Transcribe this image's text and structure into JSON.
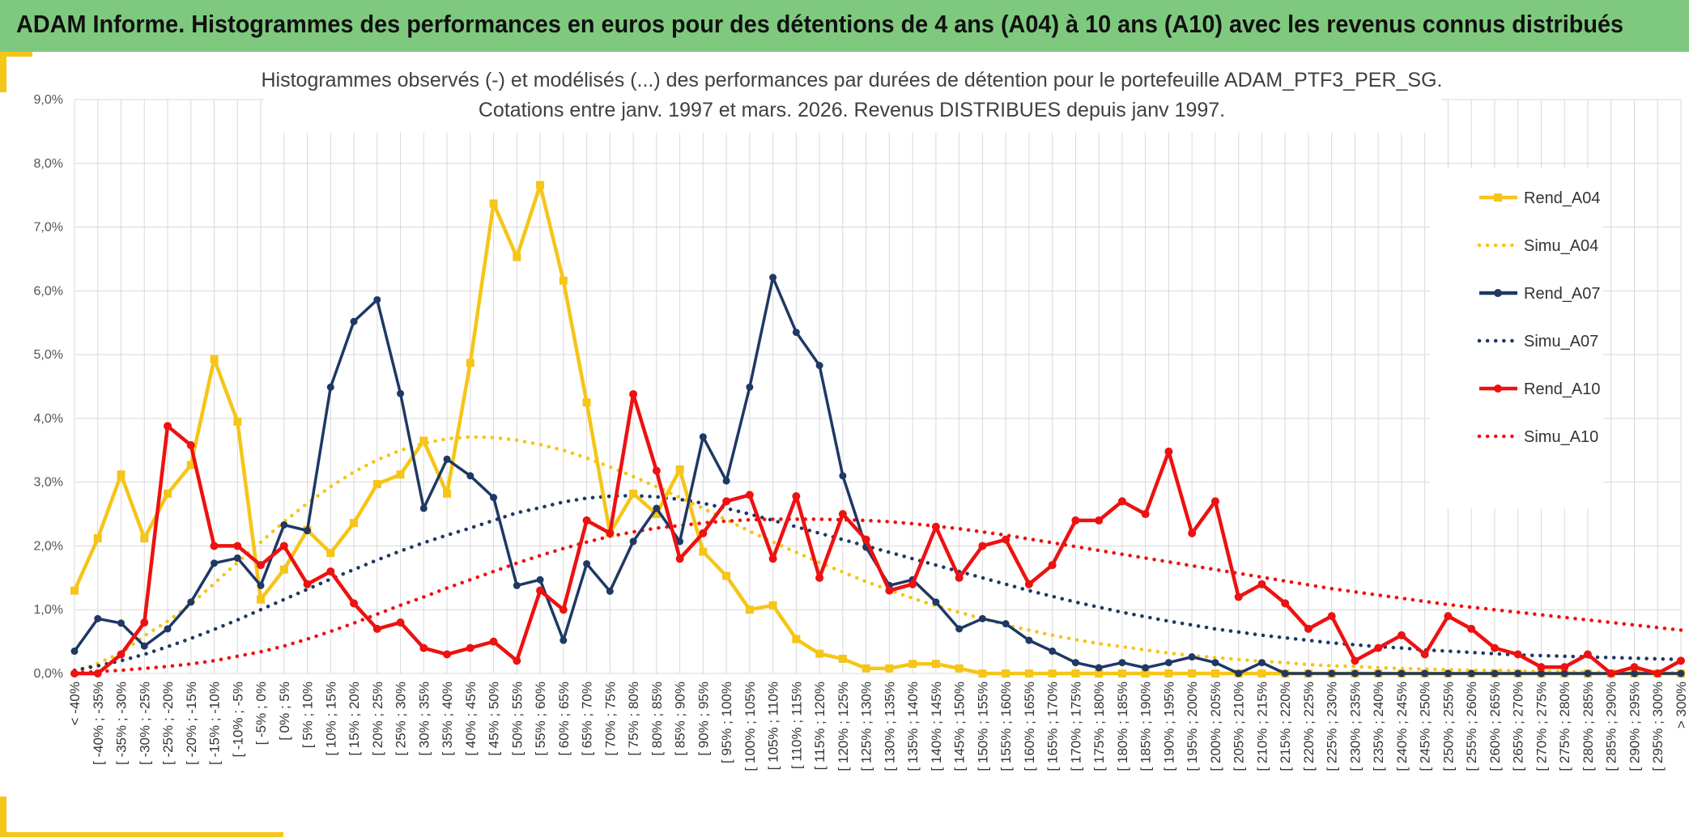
{
  "header": {
    "title": "ADAM Informe. Histogrammes des performances en euros pour des détentions de 4 ans (A04) à 10 ans (A10) avec les revenus connus distribués"
  },
  "colors": {
    "header_bg": "#7fc97f",
    "accent": "#f5c518",
    "a04": "#f5c518",
    "a07": "#1f3864",
    "a10": "#ee1111"
  },
  "chart_data": {
    "type": "line",
    "title": [
      "Histogrammes observés (-) et modélisés (...) des performances par durées de détention pour le portefeuille ADAM_PTF3_PER_SG.",
      "Cotations entre janv. 1997 et mars. 2026. Revenus DISTRIBUES depuis janv 1997."
    ],
    "xlabel": "",
    "ylabel": "",
    "ylim": [
      0,
      9
    ],
    "yticks": [
      "0,0%",
      "1,0%",
      "2,0%",
      "3,0%",
      "4,0%",
      "5,0%",
      "6,0%",
      "7,0%",
      "8,0%",
      "9,0%"
    ],
    "legend_position": "right",
    "categories": [
      "< -40%",
      "[ -40% ; -35%",
      "[ -35% ; -30%",
      "[ -30% ; -25%",
      "[ -25% ; -20%",
      "[ -20% ; -15%",
      "[ -15% ; -10%",
      "[ -10% ; -5%",
      "[ -5% ; 0%",
      "[ 0% ; 5%",
      "[ 5% ; 10%",
      "[ 10% ; 15%",
      "[ 15% ; 20%",
      "[ 20% ; 25%",
      "[ 25% ; 30%",
      "[ 30% ; 35%",
      "[ 35% ; 40%",
      "[ 40% ; 45%",
      "[ 45% ; 50%",
      "[ 50% ; 55%",
      "[ 55% ; 60%",
      "[ 60% ; 65%",
      "[ 65% ; 70%",
      "[ 70% ; 75%",
      "[ 75% ; 80%",
      "[ 80% ; 85%",
      "[ 85% ; 90%",
      "[ 90% ; 95%",
      "[ 95% ; 100%",
      "[ 100% ; 105%",
      "[ 105% ; 110%",
      "[ 110% ; 115%",
      "[ 115% ; 120%",
      "[ 120% ; 125%",
      "[ 125% ; 130%",
      "[ 130% ; 135%",
      "[ 135% ; 140%",
      "[ 140% ; 145%",
      "[ 145% ; 150%",
      "[ 150% ; 155%",
      "[ 155% ; 160%",
      "[ 160% ; 165%",
      "[ 165% ; 170%",
      "[ 170% ; 175%",
      "[ 175% ; 180%",
      "[ 180% ; 185%",
      "[ 185% ; 190%",
      "[ 190% ; 195%",
      "[ 195% ; 200%",
      "[ 200% ; 205%",
      "[ 205% ; 210%",
      "[ 210% ; 215%",
      "[ 215% ; 220%",
      "[ 220% ; 225%",
      "[ 225% ; 230%",
      "[ 230% ; 235%",
      "[ 235% ; 240%",
      "[ 240% ; 245%",
      "[ 245% ; 250%",
      "[ 250% ; 255%",
      "[ 255% ; 260%",
      "[ 260% ; 265%",
      "[ 265% ; 270%",
      "[ 270% ; 275%",
      "[ 275% ; 280%",
      "[ 280% ; 285%",
      "[ 285% ; 290%",
      "[ 290% ; 295%",
      "[ 295% ; 300%",
      "> 300%"
    ],
    "series": [
      {
        "name": "Rend_A04",
        "style": "solid-square",
        "color": "#f5c518",
        "values": [
          1.3,
          2.12,
          3.12,
          2.12,
          2.82,
          3.27,
          4.93,
          3.95,
          1.16,
          1.63,
          2.25,
          1.89,
          2.36,
          2.97,
          3.12,
          3.65,
          2.82,
          4.87,
          7.37,
          6.53,
          7.66,
          6.16,
          4.25,
          2.2,
          2.82,
          2.5,
          3.2,
          1.91,
          1.53,
          1.0,
          1.07,
          0.54,
          0.31,
          0.23,
          0.08,
          0.08,
          0.15,
          0.15,
          0.08,
          0,
          0,
          0,
          0,
          0,
          0,
          0,
          0,
          0,
          0,
          0,
          0,
          0,
          0,
          0,
          0,
          0,
          0,
          0,
          0,
          0,
          0,
          0,
          0,
          0,
          0,
          0,
          0,
          0,
          0,
          0
        ]
      },
      {
        "name": "Simu_A04",
        "style": "dotted",
        "color": "#f5c518",
        "values": [
          0.02,
          0.16,
          0.32,
          0.59,
          0.82,
          1.09,
          1.41,
          1.74,
          2.06,
          2.38,
          2.67,
          2.93,
          3.16,
          3.35,
          3.5,
          3.61,
          3.68,
          3.71,
          3.7,
          3.66,
          3.59,
          3.5,
          3.38,
          3.24,
          3.09,
          2.93,
          2.76,
          2.59,
          2.41,
          2.23,
          2.06,
          1.9,
          1.74,
          1.59,
          1.44,
          1.31,
          1.18,
          1.06,
          0.96,
          0.86,
          0.76,
          0.68,
          0.6,
          0.53,
          0.47,
          0.42,
          0.37,
          0.32,
          0.28,
          0.25,
          0.22,
          0.19,
          0.17,
          0.14,
          0.12,
          0.11,
          0.09,
          0.08,
          0.07,
          0.06,
          0.05,
          0.05,
          0.04,
          0.03,
          0.03,
          0.02,
          0.02,
          0.02,
          0.01,
          0.01
        ]
      },
      {
        "name": "Rend_A07",
        "style": "solid-circle",
        "color": "#1f3864",
        "values": [
          0.35,
          0.86,
          0.79,
          0.43,
          0.7,
          1.12,
          1.73,
          1.81,
          1.38,
          2.33,
          2.24,
          4.49,
          5.52,
          5.86,
          4.39,
          2.59,
          3.36,
          3.1,
          2.76,
          1.38,
          1.47,
          0.52,
          1.72,
          1.29,
          2.07,
          2.59,
          2.07,
          3.71,
          3.02,
          4.49,
          6.21,
          5.35,
          4.83,
          3.1,
          1.98,
          1.38,
          1.47,
          1.12,
          0.7,
          0.86,
          0.78,
          0.52,
          0.35,
          0.17,
          0.09,
          0.17,
          0.09,
          0.17,
          0.26,
          0.17,
          0,
          0.17,
          0,
          0,
          0,
          0,
          0,
          0,
          0,
          0,
          0,
          0,
          0,
          0,
          0,
          0,
          0,
          0,
          0,
          0
        ]
      },
      {
        "name": "Simu_A07",
        "style": "dotted",
        "color": "#1f3864",
        "values": [
          0.05,
          0.12,
          0.2,
          0.3,
          0.42,
          0.55,
          0.69,
          0.84,
          1.0,
          1.16,
          1.32,
          1.48,
          1.63,
          1.78,
          1.92,
          2.05,
          2.17,
          2.28,
          2.4,
          2.52,
          2.6,
          2.69,
          2.75,
          2.78,
          2.79,
          2.77,
          2.73,
          2.67,
          2.59,
          2.5,
          2.4,
          2.3,
          2.2,
          2.1,
          2.0,
          1.9,
          1.8,
          1.7,
          1.6,
          1.5,
          1.4,
          1.3,
          1.21,
          1.12,
          1.04,
          0.96,
          0.89,
          0.82,
          0.76,
          0.7,
          0.65,
          0.6,
          0.56,
          0.52,
          0.48,
          0.45,
          0.42,
          0.4,
          0.37,
          0.35,
          0.33,
          0.31,
          0.29,
          0.28,
          0.27,
          0.26,
          0.25,
          0.24,
          0.23,
          0.22
        ]
      },
      {
        "name": "Rend_A10",
        "style": "solid-circle",
        "color": "#ee1111",
        "values": [
          0,
          0,
          0.3,
          0.8,
          3.88,
          3.58,
          2.0,
          2.0,
          1.7,
          2.0,
          1.4,
          1.6,
          1.1,
          0.7,
          0.8,
          0.4,
          0.3,
          0.4,
          0.5,
          0.2,
          1.3,
          1.0,
          2.4,
          2.2,
          4.38,
          3.18,
          1.8,
          2.2,
          2.7,
          2.8,
          1.8,
          2.78,
          1.5,
          2.5,
          2.1,
          1.3,
          1.4,
          2.3,
          1.5,
          2.0,
          2.1,
          1.4,
          1.7,
          2.4,
          2.4,
          2.7,
          2.5,
          3.48,
          2.2,
          2.7,
          1.2,
          1.4,
          1.1,
          0.7,
          0.9,
          0.2,
          0.4,
          0.6,
          0.3,
          0.9,
          0.7,
          0.4,
          0.3,
          0.1,
          0.1,
          0.3,
          0,
          0.1,
          0,
          0.2
        ]
      },
      {
        "name": "Simu_A10",
        "style": "dotted",
        "color": "#ee1111",
        "values": [
          0.01,
          0.03,
          0.05,
          0.08,
          0.11,
          0.15,
          0.2,
          0.27,
          0.34,
          0.43,
          0.54,
          0.66,
          0.79,
          0.93,
          1.07,
          1.2,
          1.34,
          1.47,
          1.6,
          1.73,
          1.85,
          1.96,
          2.06,
          2.15,
          2.22,
          2.28,
          2.32,
          2.36,
          2.39,
          2.41,
          2.42,
          2.42,
          2.42,
          2.41,
          2.4,
          2.38,
          2.35,
          2.31,
          2.27,
          2.22,
          2.17,
          2.11,
          2.05,
          1.99,
          1.93,
          1.87,
          1.81,
          1.75,
          1.69,
          1.63,
          1.57,
          1.51,
          1.45,
          1.39,
          1.33,
          1.28,
          1.23,
          1.18,
          1.13,
          1.08,
          1.04,
          1.0,
          0.96,
          0.92,
          0.88,
          0.84,
          0.8,
          0.76,
          0.72,
          0.68
        ]
      }
    ]
  }
}
